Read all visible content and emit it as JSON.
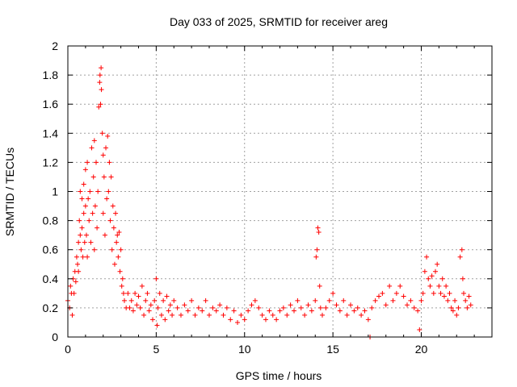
{
  "chart_data": {
    "type": "scatter",
    "title": "Day 033 of 2025, SRMTID for receiver areg",
    "xlabel": "GPS time / hours",
    "ylabel": "SRMTID / TECUs",
    "xlim": [
      0,
      24
    ],
    "ylim": [
      0,
      2
    ],
    "xticks": [
      0,
      5,
      10,
      15,
      20
    ],
    "yticks": [
      0,
      0.2,
      0.4,
      0.6,
      0.8,
      1,
      1.2,
      1.4,
      1.6,
      1.8,
      2
    ],
    "grid": true,
    "marker": "+",
    "color": "#ff0000",
    "series": [
      {
        "name": "SRMTID",
        "points": [
          [
            0.0,
            0.25
          ],
          [
            0.1,
            0.2
          ],
          [
            0.15,
            0.35
          ],
          [
            0.2,
            0.3
          ],
          [
            0.25,
            0.15
          ],
          [
            0.3,
            0.4
          ],
          [
            0.35,
            0.3
          ],
          [
            0.4,
            0.45
          ],
          [
            0.45,
            0.38
          ],
          [
            0.5,
            0.55
          ],
          [
            0.55,
            0.5
          ],
          [
            0.6,
            0.65
          ],
          [
            0.6,
            0.45
          ],
          [
            0.65,
            0.8
          ],
          [
            0.7,
            0.7
          ],
          [
            0.7,
            1.0
          ],
          [
            0.75,
            0.6
          ],
          [
            0.8,
            0.95
          ],
          [
            0.8,
            0.75
          ],
          [
            0.85,
            0.55
          ],
          [
            0.9,
            1.05
          ],
          [
            0.9,
            0.85
          ],
          [
            0.95,
            0.65
          ],
          [
            1.0,
            1.15
          ],
          [
            1.0,
            0.9
          ],
          [
            1.05,
            0.7
          ],
          [
            1.1,
            1.2
          ],
          [
            1.1,
            0.55
          ],
          [
            1.15,
            0.95
          ],
          [
            1.2,
            0.8
          ],
          [
            1.25,
            1.0
          ],
          [
            1.3,
            0.65
          ],
          [
            1.35,
            1.3
          ],
          [
            1.4,
            0.85
          ],
          [
            1.45,
            1.1
          ],
          [
            1.5,
            0.6
          ],
          [
            1.5,
            1.35
          ],
          [
            1.55,
            0.9
          ],
          [
            1.6,
            1.2
          ],
          [
            1.65,
            0.75
          ],
          [
            1.7,
            1.0
          ],
          [
            1.75,
            1.58
          ],
          [
            1.8,
            1.75
          ],
          [
            1.82,
            1.8
          ],
          [
            1.85,
            1.6
          ],
          [
            1.88,
            1.85
          ],
          [
            1.9,
            1.7
          ],
          [
            1.95,
            1.4
          ],
          [
            2.0,
            1.25
          ],
          [
            2.0,
            0.85
          ],
          [
            2.05,
            1.1
          ],
          [
            2.1,
            0.7
          ],
          [
            2.15,
            1.3
          ],
          [
            2.2,
            0.95
          ],
          [
            2.25,
            1.38
          ],
          [
            2.3,
            1.0
          ],
          [
            2.35,
            1.2
          ],
          [
            2.4,
            0.8
          ],
          [
            2.45,
            1.1
          ],
          [
            2.5,
            0.6
          ],
          [
            2.55,
            0.9
          ],
          [
            2.6,
            0.75
          ],
          [
            2.65,
            0.5
          ],
          [
            2.7,
            0.85
          ],
          [
            2.75,
            0.65
          ],
          [
            2.8,
            0.7
          ],
          [
            2.85,
            0.55
          ],
          [
            2.9,
            0.72
          ],
          [
            2.95,
            0.45
          ],
          [
            3.0,
            0.6
          ],
          [
            3.05,
            0.35
          ],
          [
            3.1,
            0.4
          ],
          [
            3.15,
            0.3
          ],
          [
            3.2,
            0.25
          ],
          [
            3.3,
            0.2
          ],
          [
            3.4,
            0.3
          ],
          [
            3.5,
            0.2
          ],
          [
            3.6,
            0.25
          ],
          [
            3.7,
            0.18
          ],
          [
            3.8,
            0.3
          ],
          [
            3.9,
            0.22
          ],
          [
            4.0,
            0.28
          ],
          [
            4.1,
            0.2
          ],
          [
            4.2,
            0.35
          ],
          [
            4.3,
            0.15
          ],
          [
            4.4,
            0.25
          ],
          [
            4.5,
            0.3
          ],
          [
            4.6,
            0.18
          ],
          [
            4.7,
            0.22
          ],
          [
            4.8,
            0.12
          ],
          [
            4.9,
            0.25
          ],
          [
            5.0,
            0.4
          ],
          [
            5.05,
            0.08
          ],
          [
            5.1,
            0.2
          ],
          [
            5.2,
            0.3
          ],
          [
            5.3,
            0.15
          ],
          [
            5.4,
            0.25
          ],
          [
            5.5,
            0.12
          ],
          [
            5.6,
            0.28
          ],
          [
            5.7,
            0.18
          ],
          [
            5.8,
            0.22
          ],
          [
            5.9,
            0.15
          ],
          [
            6.0,
            0.25
          ],
          [
            6.2,
            0.2
          ],
          [
            6.4,
            0.15
          ],
          [
            6.6,
            0.22
          ],
          [
            6.8,
            0.18
          ],
          [
            7.0,
            0.25
          ],
          [
            7.2,
            0.15
          ],
          [
            7.4,
            0.2
          ],
          [
            7.6,
            0.18
          ],
          [
            7.8,
            0.25
          ],
          [
            8.0,
            0.15
          ],
          [
            8.2,
            0.2
          ],
          [
            8.4,
            0.18
          ],
          [
            8.6,
            0.22
          ],
          [
            8.8,
            0.15
          ],
          [
            9.0,
            0.2
          ],
          [
            9.2,
            0.12
          ],
          [
            9.4,
            0.18
          ],
          [
            9.6,
            0.1
          ],
          [
            9.8,
            0.15
          ],
          [
            10.0,
            0.12
          ],
          [
            10.2,
            0.18
          ],
          [
            10.4,
            0.22
          ],
          [
            10.6,
            0.25
          ],
          [
            10.8,
            0.2
          ],
          [
            11.0,
            0.15
          ],
          [
            11.2,
            0.12
          ],
          [
            11.4,
            0.18
          ],
          [
            11.6,
            0.15
          ],
          [
            11.8,
            0.12
          ],
          [
            12.0,
            0.18
          ],
          [
            12.2,
            0.2
          ],
          [
            12.4,
            0.15
          ],
          [
            12.6,
            0.22
          ],
          [
            12.8,
            0.18
          ],
          [
            13.0,
            0.25
          ],
          [
            13.2,
            0.2
          ],
          [
            13.4,
            0.15
          ],
          [
            13.6,
            0.22
          ],
          [
            13.8,
            0.18
          ],
          [
            14.0,
            0.25
          ],
          [
            14.05,
            0.55
          ],
          [
            14.1,
            0.6
          ],
          [
            14.15,
            0.75
          ],
          [
            14.2,
            0.72
          ],
          [
            14.25,
            0.35
          ],
          [
            14.3,
            0.2
          ],
          [
            14.4,
            0.15
          ],
          [
            14.6,
            0.2
          ],
          [
            14.8,
            0.25
          ],
          [
            15.0,
            0.3
          ],
          [
            15.2,
            0.22
          ],
          [
            15.4,
            0.18
          ],
          [
            15.6,
            0.25
          ],
          [
            15.8,
            0.15
          ],
          [
            16.0,
            0.22
          ],
          [
            16.2,
            0.18
          ],
          [
            16.4,
            0.2
          ],
          [
            16.6,
            0.15
          ],
          [
            16.8,
            0.18
          ],
          [
            17.0,
            0.12
          ],
          [
            17.1,
            0.0
          ],
          [
            17.2,
            0.2
          ],
          [
            17.4,
            0.25
          ],
          [
            17.6,
            0.28
          ],
          [
            17.8,
            0.3
          ],
          [
            18.0,
            0.22
          ],
          [
            18.2,
            0.35
          ],
          [
            18.4,
            0.25
          ],
          [
            18.6,
            0.3
          ],
          [
            18.8,
            0.35
          ],
          [
            19.0,
            0.28
          ],
          [
            19.2,
            0.22
          ],
          [
            19.4,
            0.25
          ],
          [
            19.6,
            0.2
          ],
          [
            19.8,
            0.18
          ],
          [
            19.9,
            0.05
          ],
          [
            20.0,
            0.25
          ],
          [
            20.1,
            0.3
          ],
          [
            20.2,
            0.45
          ],
          [
            20.3,
            0.55
          ],
          [
            20.4,
            0.4
          ],
          [
            20.5,
            0.35
          ],
          [
            20.6,
            0.42
          ],
          [
            20.7,
            0.3
          ],
          [
            20.8,
            0.45
          ],
          [
            20.9,
            0.5
          ],
          [
            21.0,
            0.35
          ],
          [
            21.1,
            0.3
          ],
          [
            21.2,
            0.4
          ],
          [
            21.3,
            0.28
          ],
          [
            21.4,
            0.35
          ],
          [
            21.5,
            0.25
          ],
          [
            21.6,
            0.3
          ],
          [
            21.7,
            0.2
          ],
          [
            21.8,
            0.18
          ],
          [
            21.9,
            0.25
          ],
          [
            22.0,
            0.15
          ],
          [
            22.1,
            0.2
          ],
          [
            22.2,
            0.55
          ],
          [
            22.3,
            0.6
          ],
          [
            22.35,
            0.4
          ],
          [
            22.4,
            0.3
          ],
          [
            22.5,
            0.25
          ],
          [
            22.6,
            0.2
          ],
          [
            22.7,
            0.28
          ],
          [
            22.8,
            0.22
          ]
        ]
      }
    ]
  }
}
